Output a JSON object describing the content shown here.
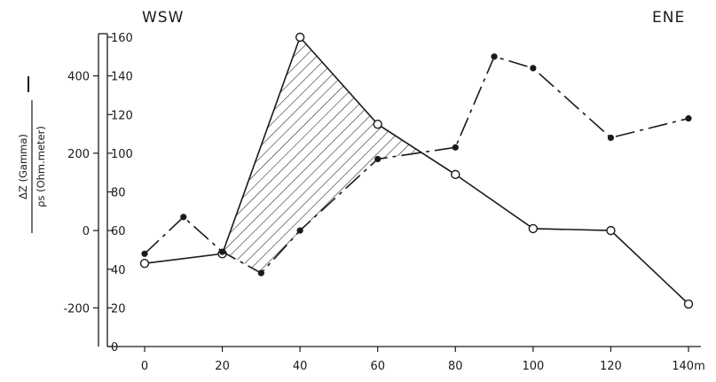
{
  "chart_data": {
    "type": "line",
    "title": "",
    "directions": {
      "left": "WSW",
      "right": "ENE"
    },
    "ylabel_top": "ΔZ (Gamma)",
    "ylabel_bottom": "ρs (Ohm.meter)",
    "x": {
      "range": [
        0,
        140
      ],
      "ticks": [
        0,
        20,
        40,
        60,
        80,
        100,
        120,
        140
      ],
      "tick_labels": [
        "0",
        "20",
        "40",
        "60",
        "80",
        "100",
        "120",
        "140m"
      ]
    },
    "y_right": {
      "name": "ρs",
      "range": [
        0,
        160
      ],
      "ticks": [
        0,
        20,
        40,
        60,
        80,
        100,
        120,
        140,
        160
      ],
      "tick_labels": [
        "0",
        "20",
        "40",
        "60",
        "80",
        "100",
        "120",
        "140",
        "160"
      ]
    },
    "y_left": {
      "name": "ΔZ",
      "range": [
        -300,
        500
      ],
      "ticks": [
        -200,
        0,
        200,
        400
      ],
      "tick_labels": [
        "-200",
        "0",
        "200",
        "400"
      ]
    },
    "series": [
      {
        "name": "",
        "axis": "y_right",
        "style": "solid",
        "marker": "open-circle",
        "x": [
          0,
          20,
          40,
          60,
          80,
          100,
          120,
          140
        ],
        "values": [
          43,
          48,
          160,
          115,
          89,
          61,
          60,
          22
        ]
      },
      {
        "name": "",
        "axis": "y_left",
        "style": "dash",
        "marker": "filled-circle",
        "x": [
          0,
          10,
          20,
          30,
          40,
          60,
          80,
          90,
          100,
          120,
          140
        ],
        "values": [
          -60,
          35,
          -55,
          -110,
          0,
          185,
          215,
          450,
          420,
          240,
          290
        ]
      }
    ],
    "hatched_region": {
      "x_range": [
        20,
        70
      ]
    },
    "grid": false,
    "legend": "none"
  }
}
